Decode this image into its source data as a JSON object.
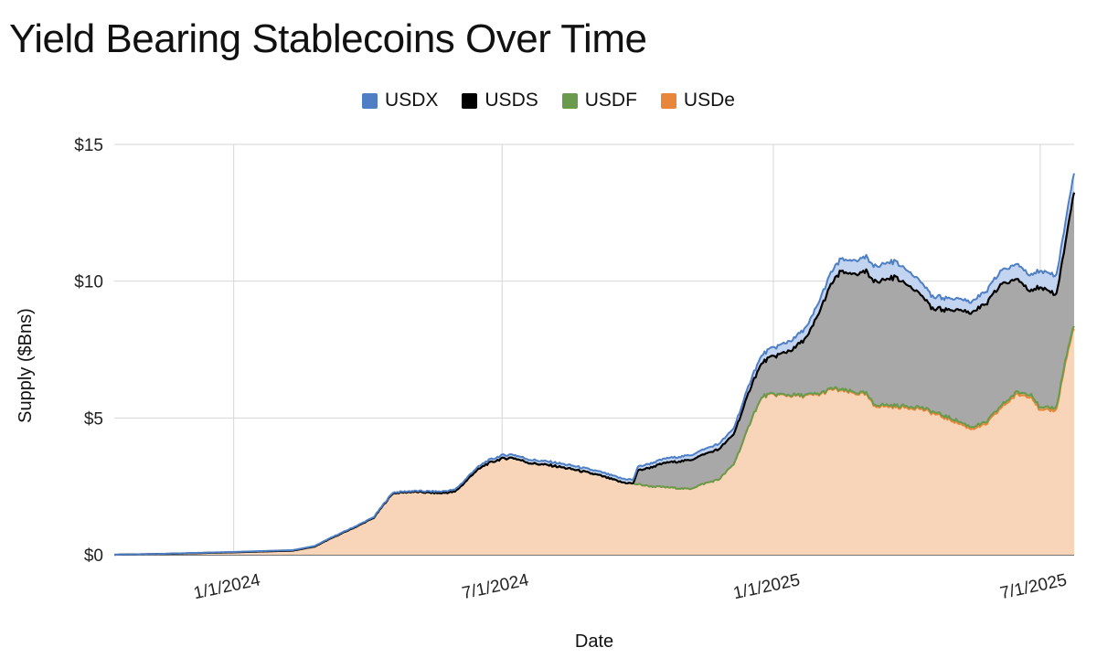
{
  "chart_data": {
    "type": "area",
    "stacked": true,
    "title": "Yield Bearing Stablecoins Over Time",
    "xlabel": "Date",
    "ylabel": "Supply ($Bns)",
    "ylim": [
      0,
      15
    ],
    "yticks": [
      0,
      5,
      10,
      15
    ],
    "ytick_labels": [
      "$0",
      "$5",
      "$10",
      "$15"
    ],
    "xlim": [
      "2023-10-12",
      "2025-07-24"
    ],
    "xticks": [
      "2024-01-01",
      "2024-07-01",
      "2025-01-01",
      "2025-07-01"
    ],
    "xtick_labels": [
      "1/1/2024",
      "7/1/2024",
      "1/1/2025",
      "7/1/2025"
    ],
    "grid": true,
    "legend_position": "top",
    "series": [
      {
        "name": "USDe",
        "color": "#e8873b",
        "fill": "#f8d5b8",
        "points": [
          [
            "2023-10-12",
            0.0
          ],
          [
            "2023-11-15",
            0.03
          ],
          [
            "2023-12-15",
            0.07
          ],
          [
            "2024-01-01",
            0.09
          ],
          [
            "2024-01-20",
            0.12
          ],
          [
            "2024-02-10",
            0.15
          ],
          [
            "2024-02-25",
            0.3
          ],
          [
            "2024-03-05",
            0.55
          ],
          [
            "2024-03-15",
            0.8
          ],
          [
            "2024-03-25",
            1.05
          ],
          [
            "2024-04-05",
            1.35
          ],
          [
            "2024-04-12",
            1.85
          ],
          [
            "2024-04-18",
            2.25
          ],
          [
            "2024-05-01",
            2.3
          ],
          [
            "2024-05-20",
            2.25
          ],
          [
            "2024-05-30",
            2.3
          ],
          [
            "2024-06-05",
            2.6
          ],
          [
            "2024-06-12",
            3.0
          ],
          [
            "2024-06-20",
            3.3
          ],
          [
            "2024-06-30",
            3.5
          ],
          [
            "2024-07-08",
            3.55
          ],
          [
            "2024-07-20",
            3.35
          ],
          [
            "2024-08-05",
            3.25
          ],
          [
            "2024-08-20",
            3.1
          ],
          [
            "2024-09-05",
            2.9
          ],
          [
            "2024-09-20",
            2.65
          ],
          [
            "2024-09-28",
            2.6
          ],
          [
            "2024-10-10",
            2.5
          ],
          [
            "2024-10-25",
            2.45
          ],
          [
            "2024-11-05",
            2.4
          ],
          [
            "2024-11-15",
            2.6
          ],
          [
            "2024-11-25",
            2.75
          ],
          [
            "2024-12-05",
            3.3
          ],
          [
            "2024-12-12",
            4.2
          ],
          [
            "2024-12-18",
            5.1
          ],
          [
            "2024-12-25",
            5.8
          ],
          [
            "2025-01-01",
            5.85
          ],
          [
            "2025-01-20",
            5.8
          ],
          [
            "2025-02-01",
            5.85
          ],
          [
            "2025-02-10",
            6.05
          ],
          [
            "2025-02-25",
            5.9
          ],
          [
            "2025-03-05",
            5.85
          ],
          [
            "2025-03-10",
            5.45
          ],
          [
            "2025-03-25",
            5.4
          ],
          [
            "2025-04-10",
            5.35
          ],
          [
            "2025-04-20",
            5.15
          ],
          [
            "2025-05-05",
            4.85
          ],
          [
            "2025-05-15",
            4.6
          ],
          [
            "2025-05-25",
            4.75
          ],
          [
            "2025-06-05",
            5.4
          ],
          [
            "2025-06-15",
            5.85
          ],
          [
            "2025-06-25",
            5.8
          ],
          [
            "2025-07-01",
            5.25
          ],
          [
            "2025-07-12",
            5.3
          ],
          [
            "2025-07-18",
            7.0
          ],
          [
            "2025-07-24",
            8.35
          ]
        ]
      },
      {
        "name": "USDF",
        "color": "#6a9a4c",
        "fill": "#a8bf8e",
        "points": [
          [
            "2023-10-12",
            0.0
          ],
          [
            "2024-12-20",
            0.0
          ],
          [
            "2025-01-01",
            0.02
          ],
          [
            "2025-07-24",
            0.1
          ]
        ]
      },
      {
        "name": "USDS",
        "color": "#000000",
        "fill": "#a8a8a8",
        "points": [
          [
            "2023-10-12",
            0.0
          ],
          [
            "2024-09-28",
            0.0
          ],
          [
            "2024-10-01",
            0.5
          ],
          [
            "2024-10-20",
            0.9
          ],
          [
            "2024-11-05",
            1.05
          ],
          [
            "2024-11-25",
            1.1
          ],
          [
            "2024-12-05",
            1.1
          ],
          [
            "2024-12-12",
            1.2
          ],
          [
            "2024-12-18",
            1.25
          ],
          [
            "2024-12-25",
            1.25
          ],
          [
            "2025-01-05",
            1.45
          ],
          [
            "2025-01-15",
            1.7
          ],
          [
            "2025-01-25",
            2.2
          ],
          [
            "2025-02-05",
            3.4
          ],
          [
            "2025-02-15",
            4.3
          ],
          [
            "2025-02-25",
            4.3
          ],
          [
            "2025-03-10",
            4.5
          ],
          [
            "2025-03-25",
            4.7
          ],
          [
            "2025-04-05",
            4.35
          ],
          [
            "2025-04-20",
            3.75
          ],
          [
            "2025-05-05",
            4.05
          ],
          [
            "2025-05-20",
            4.25
          ],
          [
            "2025-06-05",
            4.45
          ],
          [
            "2025-06-15",
            4.1
          ],
          [
            "2025-06-25",
            3.8
          ],
          [
            "2025-07-01",
            4.4
          ],
          [
            "2025-07-12",
            4.1
          ],
          [
            "2025-07-18",
            4.3
          ],
          [
            "2025-07-24",
            4.85
          ]
        ]
      },
      {
        "name": "USDX",
        "color": "#4e7fc4",
        "fill": "#c3d4f0",
        "points": [
          [
            "2023-10-12",
            0.0
          ],
          [
            "2024-05-01",
            0.03
          ],
          [
            "2024-07-01",
            0.12
          ],
          [
            "2024-10-01",
            0.14
          ],
          [
            "2024-12-01",
            0.2
          ],
          [
            "2025-01-01",
            0.32
          ],
          [
            "2025-02-15",
            0.45
          ],
          [
            "2025-03-20",
            0.6
          ],
          [
            "2025-04-15",
            0.45
          ],
          [
            "2025-05-15",
            0.4
          ],
          [
            "2025-06-15",
            0.55
          ],
          [
            "2025-07-01",
            0.6
          ],
          [
            "2025-07-18",
            0.75
          ],
          [
            "2025-07-24",
            0.7
          ]
        ]
      }
    ]
  }
}
